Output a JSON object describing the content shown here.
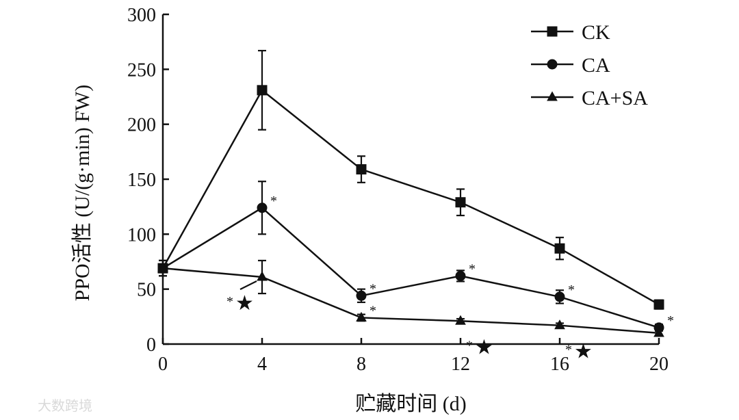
{
  "chart_data": {
    "type": "line",
    "title": "",
    "xlabel": "贮藏时间 (d)",
    "ylabel": "PPO活性 (U/(g·min) FW)",
    "x": [
      0,
      4,
      8,
      12,
      16,
      20
    ],
    "xticks": [
      "0",
      "4",
      "8",
      "12",
      "16",
      "20"
    ],
    "yticks": [
      "0",
      "50",
      "100",
      "150",
      "200",
      "250",
      "300"
    ],
    "xlim": [
      0,
      20
    ],
    "ylim": [
      0,
      300
    ],
    "grid": false,
    "legend_position": "top-right",
    "series": [
      {
        "name": "CK",
        "marker": "square",
        "values": [
          69,
          231,
          159,
          129,
          87,
          36
        ],
        "errors": [
          7,
          36,
          12,
          12,
          10,
          4
        ]
      },
      {
        "name": "CA",
        "marker": "circle",
        "values": [
          69,
          124,
          44,
          62,
          43,
          15
        ],
        "errors": [
          7,
          24,
          6,
          5,
          6,
          3
        ]
      },
      {
        "name": "CA+SA",
        "marker": "triangle",
        "values": [
          69,
          61,
          24,
          21,
          17,
          10
        ],
        "errors": [
          7,
          15,
          3,
          2,
          2,
          2
        ]
      }
    ],
    "annotations": [
      {
        "text": "*",
        "x": 4,
        "y": 124,
        "series": "CA"
      },
      {
        "text": "*",
        "x": 8,
        "y": 44,
        "series": "CA"
      },
      {
        "text": "*",
        "x": 12,
        "y": 62,
        "series": "CA"
      },
      {
        "text": "*",
        "x": 16,
        "y": 43,
        "series": "CA"
      },
      {
        "text": "*",
        "x": 20,
        "y": 15,
        "series": "CA"
      },
      {
        "text": "*★",
        "x": 4,
        "y": 61,
        "series": "CA+SA"
      },
      {
        "text": "*",
        "x": 8,
        "y": 24,
        "series": "CA+SA"
      },
      {
        "text": "*★",
        "x": 12,
        "y": 21,
        "series": "CA+SA"
      },
      {
        "text": "*★",
        "x": 16,
        "y": 17,
        "series": "CA+SA"
      }
    ]
  },
  "watermark": "大数跨境"
}
